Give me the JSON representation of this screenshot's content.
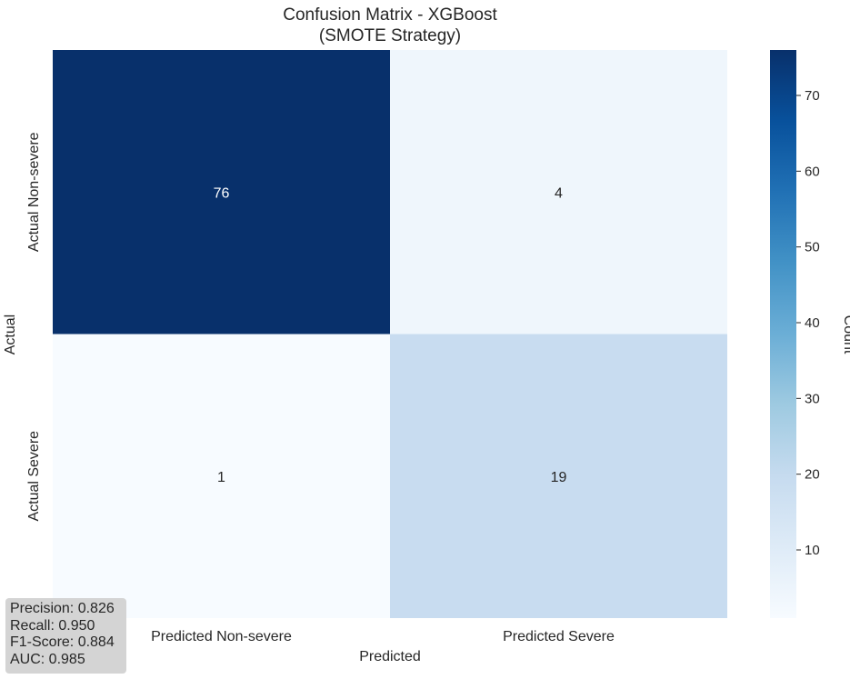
{
  "chart_data": {
    "type": "heatmap",
    "title": "Confusion Matrix - XGBoost",
    "subtitle": "(SMOTE Strategy)",
    "xlabel": "Predicted",
    "ylabel": "Actual",
    "x_categories": [
      "Predicted Non-severe",
      "Predicted Severe"
    ],
    "y_categories": [
      "Actual Non-severe",
      "Actual Severe"
    ],
    "values": [
      [
        76,
        4
      ],
      [
        1,
        19
      ]
    ],
    "colorbar": {
      "label": "Count",
      "min": 1,
      "max": 76,
      "ticks": [
        10,
        20,
        30,
        40,
        50,
        60,
        70
      ]
    },
    "colormap": [
      "#f7fbff",
      "#deebf7",
      "#c6dbef",
      "#9ecae1",
      "#6baed6",
      "#4292c6",
      "#2171b5",
      "#08519c",
      "#08306b"
    ]
  },
  "metrics": {
    "precision": "Precision: 0.826",
    "recall": "Recall: 0.950",
    "f1": "F1-Score: 0.884",
    "auc": "AUC: 0.985"
  }
}
